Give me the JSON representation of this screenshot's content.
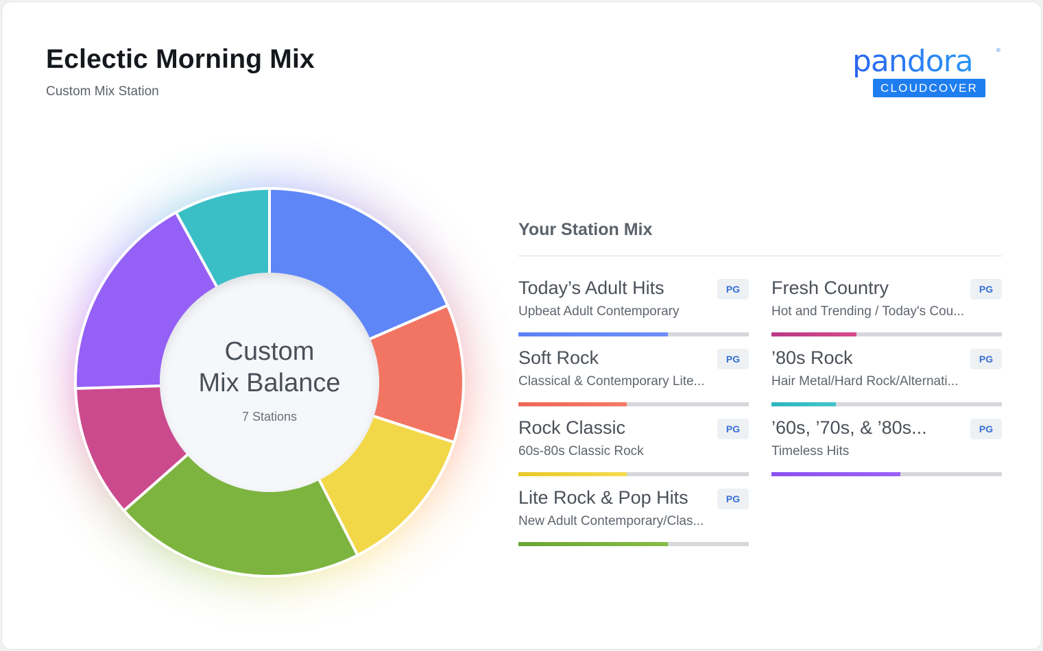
{
  "header": {
    "title": "Eclectic Morning Mix",
    "subtitle": "Custom Mix Station"
  },
  "logo": {
    "word": "pandora",
    "registered": "®",
    "sub": "CLOUDCOVER"
  },
  "balance": {
    "title_line1": "Custom",
    "title_line2": "Mix Balance",
    "count_label": "7 Stations"
  },
  "mix": {
    "heading": "Your Station Mix",
    "stations": [
      {
        "name": "Today’s Adult Hits",
        "desc": "Upbeat Adult Contemporary",
        "rating": "PG",
        "share": 0.65,
        "color": "#5b82f5",
        "color2": "#6f8ff7"
      },
      {
        "name": "Fresh Country",
        "desc": "Hot and Trending / Today's Cou...",
        "rating": "PG",
        "share": 0.37,
        "color": "#b83a86",
        "color2": "#d64a8a"
      },
      {
        "name": "Soft Rock",
        "desc": "Classical & Contemporary Lite...",
        "rating": "PG",
        "share": 0.47,
        "color": "#ee6757",
        "color2": "#f47a68"
      },
      {
        "name": "’80s Rock",
        "desc": "Hair Metal/Hard Rock/Alternati...",
        "rating": "PG",
        "share": 0.28,
        "color": "#2bb6c0",
        "color2": "#45c5cc"
      },
      {
        "name": "Rock Classic",
        "desc": "60s-80s Classic Rock",
        "rating": "PG",
        "share": 0.47,
        "color": "#e8c92a",
        "color2": "#f4dc52"
      },
      {
        "name": "’60s, ’70s, & ’80s...",
        "desc": "Timeless Hits",
        "rating": "PG",
        "share": 0.56,
        "color": "#8a52f0",
        "color2": "#9b62f5"
      },
      {
        "name": "Lite Rock & Pop Hits",
        "desc": "New Adult Contemporary/Clas...",
        "rating": "PG",
        "share": 0.65,
        "color": "#6aa534",
        "color2": "#86bc45"
      }
    ]
  },
  "chart_data": {
    "type": "pie",
    "categories": [
      "Today’s Adult Hits",
      "Soft Rock",
      "Rock Classic",
      "Lite Rock & Pop Hits",
      "Fresh Country",
      "’60s, ’70s, & ’80s...",
      "’80s Rock"
    ],
    "values": [
      18.5,
      11.5,
      12.5,
      21.0,
      11.0,
      17.5,
      8.0
    ],
    "colors": [
      "#5f86f7",
      "#f27563",
      "#f2d848",
      "#7db43f",
      "#cb4a8e",
      "#9560f5",
      "#3bbfc7"
    ]
  }
}
